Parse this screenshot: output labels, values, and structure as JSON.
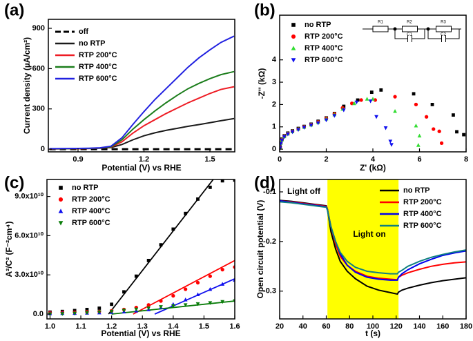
{
  "chart_data": [
    {
      "type": "line",
      "panel_label": "(a)",
      "x_label": "Potential (V) vs RHE",
      "y_label": "Current density (µA/cm²)",
      "xlim": [
        0.765,
        1.613
      ],
      "ylim": [
        -20,
        967
      ],
      "xticks": [
        0.9,
        1.2,
        1.5
      ],
      "yticks": [
        0,
        300,
        600,
        900
      ],
      "legend": "upper left",
      "x": [
        0.77,
        0.85,
        0.9,
        0.95,
        1.0,
        1.05,
        1.1,
        1.15,
        1.2,
        1.25,
        1.3,
        1.35,
        1.4,
        1.45,
        1.5,
        1.55,
        1.61
      ],
      "series": [
        {
          "name": "off",
          "color": "#000000",
          "style": "dashed",
          "values": [
            0,
            0,
            0,
            0,
            0,
            0,
            0,
            0,
            0,
            0,
            0,
            0,
            0,
            0,
            0,
            0,
            0
          ]
        },
        {
          "name": "no RTP",
          "color": "#1a1a1a",
          "style": "solid",
          "values": [
            2,
            3,
            4,
            5,
            7,
            12,
            35,
            70,
            100,
            122,
            140,
            155,
            170,
            183,
            197,
            212,
            228
          ]
        },
        {
          "name": "RTP 200°C",
          "color": "#ee1c24",
          "style": "solid",
          "values": [
            2,
            3,
            4,
            5,
            8,
            15,
            55,
            120,
            175,
            220,
            265,
            305,
            345,
            380,
            415,
            445,
            465
          ]
        },
        {
          "name": "RTP 400°C",
          "color": "#1b7d1b",
          "style": "solid",
          "values": [
            3,
            4,
            5,
            6,
            9,
            18,
            70,
            150,
            220,
            285,
            345,
            400,
            450,
            490,
            525,
            555,
            578
          ]
        },
        {
          "name": "RTP 600°C",
          "color": "#2121e0",
          "style": "solid",
          "values": [
            4,
            5,
            6,
            7,
            10,
            22,
            85,
            185,
            280,
            370,
            450,
            530,
            610,
            680,
            740,
            795,
            842
          ]
        }
      ]
    },
    {
      "type": "scatter",
      "panel_label": "(b)",
      "x_label": "Z' (kΩ)",
      "y_label": "-Z'' (kΩ)",
      "xlim": [
        0,
        8
      ],
      "ylim": [
        -0.12,
        6
      ],
      "xticks": [
        0,
        2,
        4,
        6,
        8
      ],
      "yticks": [
        0,
        1,
        2,
        3,
        4
      ],
      "legend": "upper left",
      "inset_labels": [
        "R1",
        "R2",
        "C1",
        "R3",
        "C2"
      ],
      "series": [
        {
          "name": "no RTP",
          "color": "#000000",
          "marker": "square",
          "x": [
            0.02,
            0.05,
            0.1,
            0.2,
            0.35,
            0.55,
            0.8,
            1.05,
            1.35,
            1.65,
            2.0,
            2.35,
            2.75,
            3.35,
            3.95,
            4.35,
            5.75,
            6.55,
            7.45,
            7.6,
            7.9
          ],
          "values": [
            0.1,
            0.3,
            0.45,
            0.6,
            0.72,
            0.82,
            0.93,
            1.02,
            1.12,
            1.25,
            1.4,
            1.6,
            1.92,
            2.2,
            2.55,
            2.65,
            2.48,
            2.0,
            1.53,
            0.78,
            0.65
          ]
        },
        {
          "name": "RTP 200°C",
          "color": "#ff0000",
          "marker": "circle",
          "x": [
            0.02,
            0.05,
            0.1,
            0.2,
            0.35,
            0.55,
            0.8,
            1.05,
            1.35,
            1.65,
            2.0,
            2.35,
            2.7,
            3.1,
            3.5,
            4.1,
            4.95,
            5.85,
            6.3,
            6.6,
            6.85,
            6.95
          ],
          "values": [
            0.08,
            0.28,
            0.43,
            0.58,
            0.7,
            0.8,
            0.9,
            1.0,
            1.1,
            1.22,
            1.38,
            1.58,
            1.85,
            2.05,
            2.2,
            2.2,
            2.35,
            2.0,
            1.45,
            0.9,
            0.8,
            0.27
          ]
        },
        {
          "name": "RTP 400°C",
          "color": "#33dd33",
          "marker": "triangle-up",
          "x": [
            0.02,
            0.05,
            0.1,
            0.2,
            0.35,
            0.55,
            0.8,
            1.05,
            1.35,
            1.65,
            2.0,
            2.35,
            2.7,
            3.2,
            3.75,
            4.0,
            4.95,
            5.85,
            6.0,
            5.95
          ],
          "values": [
            0.07,
            0.27,
            0.42,
            0.57,
            0.69,
            0.79,
            0.9,
            0.99,
            1.09,
            1.2,
            1.36,
            1.55,
            1.8,
            2.05,
            2.25,
            2.25,
            1.7,
            1.05,
            0.6,
            0.18
          ]
        },
        {
          "name": "RTP 600°C",
          "color": "#1010ee",
          "marker": "triangle-down",
          "x": [
            0.02,
            0.05,
            0.1,
            0.2,
            0.35,
            0.55,
            0.8,
            1.05,
            1.35,
            1.65,
            2.0,
            2.35,
            2.75,
            3.3,
            3.9,
            4.15,
            4.55,
            4.75,
            4.8
          ],
          "values": [
            0.05,
            0.25,
            0.4,
            0.55,
            0.67,
            0.77,
            0.87,
            0.97,
            1.07,
            1.17,
            1.3,
            1.5,
            1.75,
            2.1,
            2.15,
            1.45,
            0.95,
            0.35,
            0.2
          ]
        }
      ]
    },
    {
      "type": "scatter",
      "panel_label": "(c)",
      "x_label": "Potential (V) vs RHE",
      "y_label": "A²/C² (F⁻²cm⁴)",
      "xlim": [
        0.99,
        1.6
      ],
      "ylim": [
        -3700000000.0,
        103000000000.0
      ],
      "xticks": [
        {
          "value": 1,
          "label": "1.0"
        },
        1.1,
        1.2,
        1.3,
        1.4,
        1.5,
        1.6
      ],
      "yticks": [
        {
          "value": 0,
          "label": "0.0"
        },
        {
          "value": 30000000000.0,
          "label": "3.0x10¹⁰"
        },
        {
          "value": 60000000000.0,
          "label": "6.0x10¹⁰"
        },
        {
          "value": 90000000000.0,
          "label": "9.0x10¹⁰"
        }
      ],
      "legend": "upper left",
      "series": [
        {
          "name": "no RTP",
          "color": "#000000",
          "marker": "square",
          "x": [
            1.0,
            1.04,
            1.08,
            1.12,
            1.16,
            1.2,
            1.24,
            1.28,
            1.32,
            1.36,
            1.4,
            1.44,
            1.48,
            1.52,
            1.56,
            1.6
          ],
          "values": [
            1500000000.0,
            2000000000.0,
            2700000000.0,
            3500000000.0,
            4500000000.0,
            7500000000.0,
            17000000000.0,
            29000000000.0,
            41000000000.0,
            53000000000.0,
            65000000000.0,
            77000000000.0,
            88000000000.0,
            97000000000.0,
            102000000000.0,
            102500000000.0
          ]
        },
        {
          "name": "RTP 200°C",
          "color": "#ff0000",
          "marker": "circle",
          "x": [
            1.0,
            1.04,
            1.08,
            1.12,
            1.16,
            1.2,
            1.24,
            1.28,
            1.32,
            1.36,
            1.4,
            1.44,
            1.48,
            1.52,
            1.56,
            1.6
          ],
          "values": [
            1000000000.0,
            1200000000.0,
            1400000000.0,
            1700000000.0,
            2000000000.0,
            2500000000.0,
            3500000000.0,
            5000000000.0,
            7000000000.0,
            10000000000.0,
            14000000000.0,
            19000000000.0,
            24000000000.0,
            29000000000.0,
            34000000000.0,
            36000000000.0
          ]
        },
        {
          "name": "RTP 400°C",
          "color": "#1010ee",
          "marker": "triangle-up",
          "x": [
            1.0,
            1.04,
            1.08,
            1.12,
            1.16,
            1.2,
            1.24,
            1.28,
            1.32,
            1.36,
            1.4,
            1.44,
            1.48,
            1.52,
            1.56,
            1.6
          ],
          "values": [
            500000000.0,
            600000000.0,
            700000000.0,
            900000000.0,
            1100000000.0,
            1400000000.0,
            1800000000.0,
            2500000000.0,
            3500000000.0,
            5000000000.0,
            7500000000.0,
            11000000000.0,
            15000000000.0,
            19000000000.0,
            23000000000.0,
            26000000000.0
          ]
        },
        {
          "name": "RTP 600°C",
          "color": "#0a7d0a",
          "marker": "triangle-down",
          "x": [
            1.0,
            1.04,
            1.08,
            1.12,
            1.16,
            1.2,
            1.24,
            1.28,
            1.32,
            1.36,
            1.4,
            1.44,
            1.48,
            1.52,
            1.56,
            1.6
          ],
          "values": [
            0,
            200000000.0,
            500000000.0,
            1000000000.0,
            1500000000.0,
            2000000000.0,
            2800000000.0,
            3600000000.0,
            4500000000.0,
            5500000000.0,
            6200000000.0,
            7000000000.0,
            7800000000.0,
            8600000000.0,
            9400000000.0,
            10000000000.0
          ]
        }
      ],
      "fits": [
        {
          "color": "#000000",
          "x": [
            1.19,
            1.53
          ],
          "values": [
            0,
            103000000000.0
          ]
        },
        {
          "color": "#ff0000",
          "x": [
            1.27,
            1.6
          ],
          "values": [
            0,
            41000000000.0
          ]
        },
        {
          "color": "#1010ee",
          "x": [
            1.34,
            1.6
          ],
          "values": [
            0,
            27000000000.0
          ]
        },
        {
          "color": "#0a7d0a",
          "x": [
            1.2,
            1.6
          ],
          "values": [
            0,
            10000000000.0
          ]
        }
      ]
    },
    {
      "type": "line",
      "panel_label": "(d)",
      "x_label": "t (s)",
      "y_label": "Open circuit potential (V)",
      "xlim": [
        20,
        180
      ],
      "ylim": [
        -0.356,
        -0.075
      ],
      "xticks": [
        20,
        40,
        60,
        80,
        100,
        120,
        140,
        160,
        180
      ],
      "yticks": [
        -0.1,
        -0.2,
        -0.3
      ],
      "legend": "upper right",
      "highlight": {
        "x": [
          61,
          122
        ],
        "color": "#ffff00"
      },
      "annotations": [
        "Light off",
        "Light on"
      ],
      "x": [
        20,
        30,
        40,
        50,
        60,
        61,
        64,
        68,
        72,
        78,
        85,
        95,
        105,
        115,
        121,
        122,
        125,
        130,
        140,
        150,
        160,
        170,
        180
      ],
      "series": [
        {
          "name": "no RTP",
          "color": "#000000",
          "style": "solid",
          "values": [
            -0.117,
            -0.119,
            -0.122,
            -0.125,
            -0.128,
            -0.135,
            -0.18,
            -0.215,
            -0.24,
            -0.26,
            -0.275,
            -0.29,
            -0.298,
            -0.303,
            -0.306,
            -0.302,
            -0.298,
            -0.294,
            -0.288,
            -0.283,
            -0.279,
            -0.276,
            -0.273
          ]
        },
        {
          "name": "RTP 200°C",
          "color": "#ff0000",
          "style": "solid",
          "values": [
            -0.118,
            -0.12,
            -0.123,
            -0.126,
            -0.129,
            -0.135,
            -0.17,
            -0.205,
            -0.23,
            -0.248,
            -0.26,
            -0.27,
            -0.274,
            -0.276,
            -0.277,
            -0.272,
            -0.268,
            -0.263,
            -0.256,
            -0.25,
            -0.246,
            -0.243,
            -0.241
          ]
        },
        {
          "name": "RTP 400°C",
          "color": "#0000ee",
          "style": "solid",
          "values": [
            -0.118,
            -0.121,
            -0.124,
            -0.127,
            -0.13,
            -0.136,
            -0.17,
            -0.2,
            -0.225,
            -0.248,
            -0.262,
            -0.272,
            -0.276,
            -0.278,
            -0.278,
            -0.272,
            -0.265,
            -0.257,
            -0.245,
            -0.236,
            -0.228,
            -0.223,
            -0.219
          ]
        },
        {
          "name": "RTP 600°C",
          "color": "#108080",
          "style": "solid",
          "values": [
            -0.12,
            -0.122,
            -0.125,
            -0.128,
            -0.131,
            -0.137,
            -0.17,
            -0.2,
            -0.222,
            -0.24,
            -0.252,
            -0.26,
            -0.263,
            -0.265,
            -0.265,
            -0.262,
            -0.258,
            -0.25,
            -0.24,
            -0.232,
            -0.226,
            -0.221,
            -0.217
          ]
        }
      ]
    }
  ]
}
